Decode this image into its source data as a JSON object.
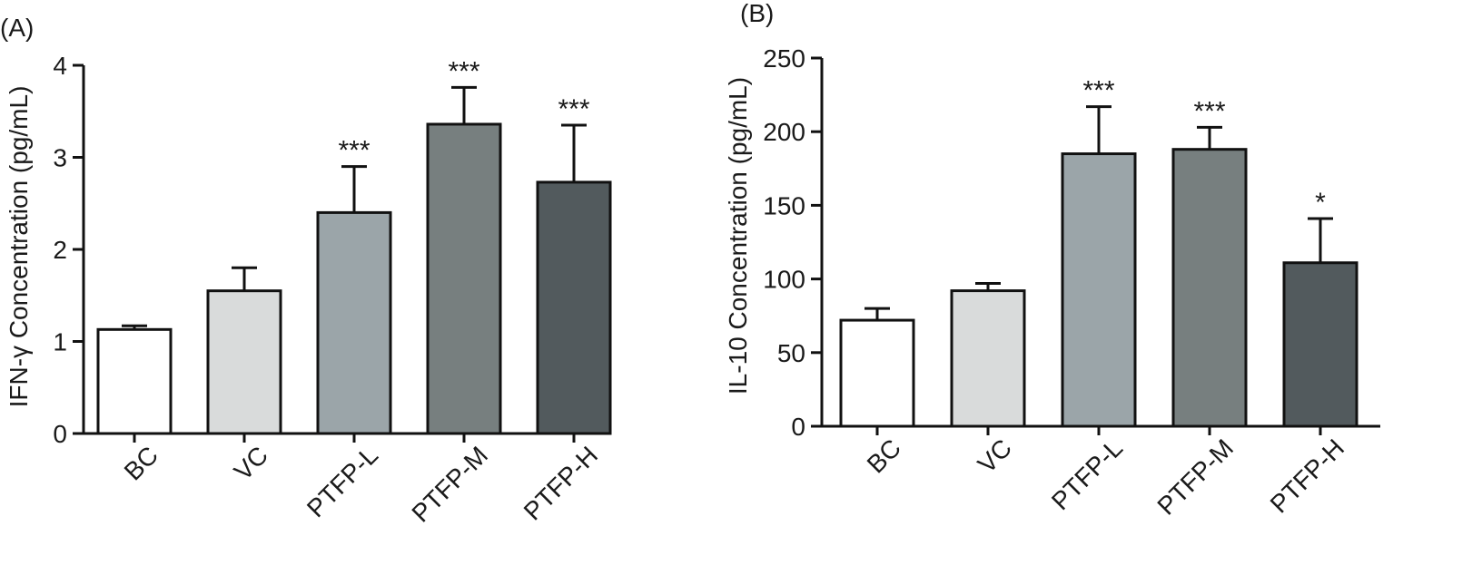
{
  "chart_data": [
    {
      "panel_label": "(A)",
      "type": "bar",
      "categories": [
        "BC",
        "VC",
        "PTFP-L",
        "PTFP-M",
        "PTFP-H"
      ],
      "values": [
        1.13,
        1.55,
        2.4,
        3.36,
        2.73
      ],
      "errors": [
        0.04,
        0.25,
        0.5,
        0.4,
        0.62
      ],
      "significance": [
        "",
        "",
        "***",
        "***",
        "***"
      ],
      "bar_colors": [
        "#ffffff",
        "#d9dbdb",
        "#9ba5a9",
        "#777f7f",
        "#525a5d"
      ],
      "xlabel": "",
      "ylabel": "IFN-γ Concentration (pg/mL)",
      "ylim": [
        0,
        4
      ],
      "yticks": [
        0,
        1,
        2,
        3,
        4
      ],
      "grid": false
    },
    {
      "panel_label": "(B)",
      "type": "bar",
      "categories": [
        "BC",
        "VC",
        "PTFP-L",
        "PTFP-M",
        "PTFP-H"
      ],
      "values": [
        72,
        92,
        185,
        188,
        111
      ],
      "errors": [
        8,
        5,
        32,
        15,
        30
      ],
      "significance": [
        "",
        "",
        "***",
        "***",
        "*"
      ],
      "bar_colors": [
        "#ffffff",
        "#d9dbdb",
        "#9ba5a9",
        "#777f7f",
        "#525a5d"
      ],
      "xlabel": "",
      "ylabel": "IL-10 Concentration (pg/mL)",
      "ylim": [
        0,
        250
      ],
      "yticks": [
        0,
        50,
        100,
        150,
        200,
        250
      ],
      "grid": false
    }
  ]
}
